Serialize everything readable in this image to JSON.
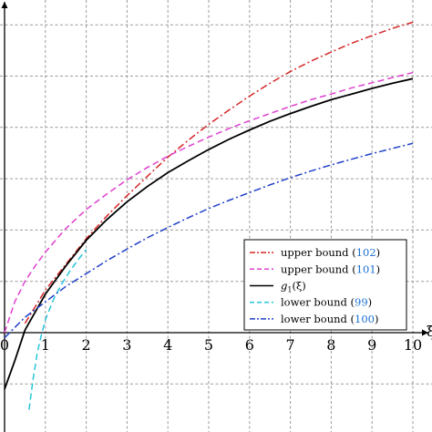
{
  "chart_data": {
    "type": "line",
    "x_ticks": [
      "0",
      "1",
      "2",
      "3",
      "4",
      "5",
      "6",
      "7",
      "8",
      "9",
      "10"
    ],
    "xlim": [
      0,
      10
    ],
    "ylim": [
      -1.5,
      6.2
    ],
    "grid": true,
    "legend_position": "bottom-right",
    "axis_label_x_partial": "ξ",
    "series": [
      {
        "name": "upper bound (102)",
        "label_text": "upper bound (",
        "ref": "102",
        "label_close": ")",
        "color": "#d62728",
        "dash": "dash-dot",
        "x": [
          0.5,
          1,
          1.5,
          2,
          2.5,
          3,
          3.5,
          4,
          4.5,
          5,
          5.5,
          6,
          6.5,
          7,
          7.5,
          8,
          8.5,
          9,
          9.5,
          10
        ],
        "y": [
          0.18,
          0.83,
          1.33,
          1.83,
          2.27,
          2.67,
          3.05,
          3.42,
          3.75,
          4.06,
          4.34,
          4.61,
          4.86,
          5.09,
          5.29,
          5.47,
          5.64,
          5.79,
          5.93,
          6.05
        ]
      },
      {
        "name": "upper bound (101)",
        "label_text": "upper bound (",
        "ref": "101",
        "label_close": ")",
        "color": "#e040d0",
        "dash": "dashed",
        "x": [
          0,
          0.25,
          0.5,
          0.75,
          1,
          1.5,
          2,
          2.5,
          3,
          3.5,
          4,
          4.5,
          5,
          5.5,
          6,
          6.5,
          7,
          7.5,
          8,
          8.5,
          9,
          9.5,
          10
        ],
        "y": [
          0,
          0.6,
          1.0,
          1.3,
          1.57,
          2.03,
          2.4,
          2.7,
          2.98,
          3.22,
          3.44,
          3.63,
          3.81,
          3.98,
          4.13,
          4.27,
          4.41,
          4.54,
          4.65,
          4.77,
          4.87,
          4.97,
          5.07
        ]
      },
      {
        "name": "g1(ξ)",
        "label_text": "g",
        "label_sub": "1",
        "label_arg": "(ξ)",
        "color": "#000000",
        "dash": "solid",
        "x": [
          0,
          0.25,
          0.5,
          0.75,
          1,
          1.5,
          2,
          2.5,
          3,
          3.5,
          4,
          4.5,
          5,
          5.5,
          6,
          6.5,
          7,
          7.5,
          8,
          8.5,
          9,
          9.5,
          10
        ],
        "y": [
          -1.1,
          -0.55,
          0.05,
          0.4,
          0.75,
          1.3,
          1.8,
          2.2,
          2.55,
          2.85,
          3.12,
          3.35,
          3.57,
          3.77,
          3.95,
          4.12,
          4.27,
          4.41,
          4.54,
          4.65,
          4.76,
          4.86,
          4.95
        ]
      },
      {
        "name": "lower bound (99)",
        "label_text": "lower bound (",
        "ref": "99",
        "label_close": ")",
        "color": "#26c6da",
        "dash": "dashed",
        "x": [
          0.6,
          0.7,
          0.8,
          0.9,
          1.0,
          1.2,
          1.4,
          1.6,
          1.8,
          2.0
        ],
        "y": [
          -1.5,
          -0.9,
          -0.4,
          -0.05,
          0.25,
          0.65,
          0.95,
          1.2,
          1.42,
          1.62
        ]
      },
      {
        "name": "lower bound (100)",
        "label_text": "lower bound (",
        "ref": "100",
        "label_close": ")",
        "color": "#2040c8",
        "dash": "dash-dot",
        "x": [
          0,
          0.5,
          1,
          1.5,
          2,
          2.5,
          3,
          3.5,
          4,
          4.5,
          5,
          5.5,
          6,
          6.5,
          7,
          7.5,
          8,
          8.5,
          9,
          9.5,
          10
        ],
        "y": [
          -0.1,
          0.3,
          0.6,
          0.9,
          1.15,
          1.4,
          1.63,
          1.85,
          2.05,
          2.24,
          2.42,
          2.58,
          2.73,
          2.88,
          3.02,
          3.15,
          3.27,
          3.38,
          3.49,
          3.59,
          3.69
        ]
      }
    ]
  }
}
